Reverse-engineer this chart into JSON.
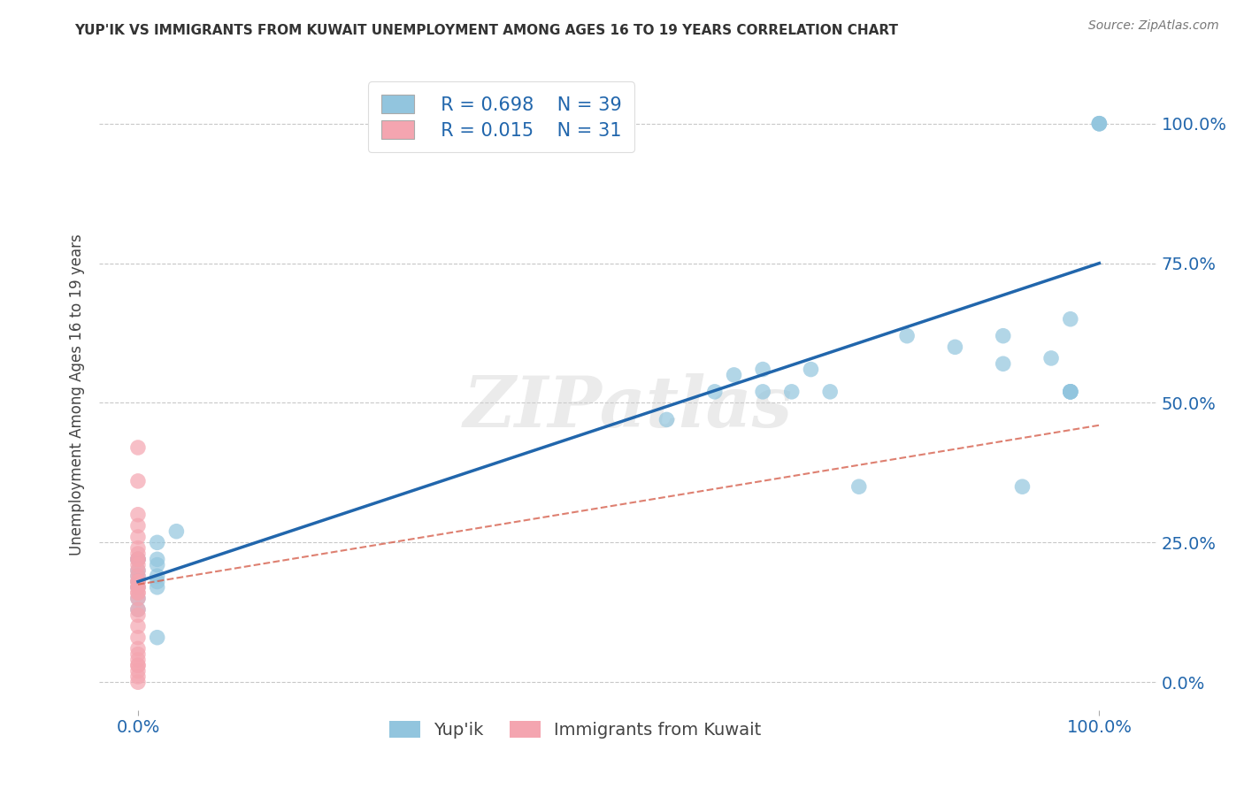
{
  "title": "YUP'IK VS IMMIGRANTS FROM KUWAIT UNEMPLOYMENT AMONG AGES 16 TO 19 YEARS CORRELATION CHART",
  "source": "Source: ZipAtlas.com",
  "ylabel": "Unemployment Among Ages 16 to 19 years",
  "ytick_labels": [
    "0.0%",
    "25.0%",
    "50.0%",
    "75.0%",
    "100.0%"
  ],
  "ytick_values": [
    0.0,
    0.25,
    0.5,
    0.75,
    1.0
  ],
  "xtick_labels": [
    "0.0%",
    "100.0%"
  ],
  "xtick_values": [
    0.0,
    1.0
  ],
  "legend_blue_r": "R = 0.698",
  "legend_blue_n": "N = 39",
  "legend_pink_r": "R = 0.015",
  "legend_pink_n": "N = 31",
  "legend_blue_label": "Yup'ik",
  "legend_pink_label": "Immigrants from Kuwait",
  "blue_color": "#92c5de",
  "pink_color": "#f4a5b0",
  "line_blue_color": "#2166ac",
  "line_pink_color": "#d6604d",
  "r_n_color": "#2166ac",
  "watermark": "ZIPatlas",
  "blue_x": [
    0.0,
    0.0,
    0.0,
    0.0,
    0.0,
    0.0,
    0.0,
    0.0,
    0.02,
    0.02,
    0.02,
    0.02,
    0.02,
    0.02,
    0.02,
    0.04,
    0.55,
    0.6,
    0.62,
    0.65,
    0.65,
    0.68,
    0.7,
    0.72,
    0.75,
    0.8,
    0.85,
    0.9,
    0.9,
    0.92,
    0.95,
    0.97,
    0.97,
    0.97,
    0.97,
    0.97,
    1.0,
    1.0,
    1.0
  ],
  "blue_y": [
    0.2,
    0.22,
    0.19,
    0.17,
    0.15,
    0.18,
    0.13,
    0.22,
    0.25,
    0.22,
    0.21,
    0.19,
    0.18,
    0.17,
    0.08,
    0.27,
    0.47,
    0.52,
    0.55,
    0.52,
    0.56,
    0.52,
    0.56,
    0.52,
    0.35,
    0.62,
    0.6,
    0.57,
    0.62,
    0.35,
    0.58,
    0.52,
    0.52,
    0.52,
    0.52,
    0.65,
    1.0,
    1.0,
    1.0
  ],
  "pink_x": [
    0.0,
    0.0,
    0.0,
    0.0,
    0.0,
    0.0,
    0.0,
    0.0,
    0.0,
    0.0,
    0.0,
    0.0,
    0.0,
    0.0,
    0.0,
    0.0,
    0.0,
    0.0,
    0.0,
    0.0,
    0.0,
    0.0,
    0.0,
    0.0,
    0.0,
    0.0,
    0.0,
    0.0,
    0.0,
    0.0,
    0.0
  ],
  "pink_y": [
    0.42,
    0.36,
    0.3,
    0.28,
    0.26,
    0.24,
    0.23,
    0.22,
    0.22,
    0.21,
    0.2,
    0.19,
    0.18,
    0.18,
    0.17,
    0.17,
    0.16,
    0.16,
    0.15,
    0.13,
    0.12,
    0.1,
    0.08,
    0.06,
    0.05,
    0.04,
    0.03,
    0.03,
    0.02,
    0.01,
    0.0
  ],
  "blue_trendline_x": [
    0.0,
    1.0
  ],
  "blue_trendline_y": [
    0.18,
    0.75
  ],
  "pink_trendline_x": [
    0.0,
    1.0
  ],
  "pink_trendline_y": [
    0.175,
    0.46
  ],
  "xlim": [
    -0.04,
    1.06
  ],
  "ylim": [
    -0.05,
    1.08
  ],
  "figsize": [
    14.06,
    8.92
  ],
  "dpi": 100
}
